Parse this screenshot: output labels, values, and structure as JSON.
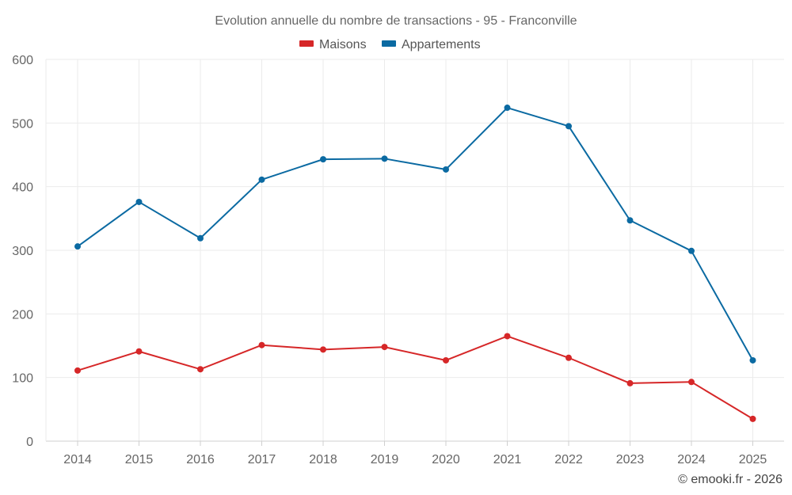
{
  "chart_data": {
    "type": "line",
    "title": "Evolution annuelle du nombre de transactions - 95 - Franconville",
    "categories": [
      "2014",
      "2015",
      "2016",
      "2017",
      "2018",
      "2019",
      "2020",
      "2021",
      "2022",
      "2023",
      "2024",
      "2025"
    ],
    "series": [
      {
        "name": "Maisons",
        "color": "#d62728",
        "values": [
          111,
          141,
          113,
          151,
          144,
          148,
          127,
          165,
          131,
          91,
          93,
          35
        ]
      },
      {
        "name": "Appartements",
        "color": "#0b6aa2",
        "values": [
          306,
          376,
          319,
          411,
          443,
          444,
          427,
          524,
          495,
          347,
          299,
          127
        ]
      }
    ],
    "ylim": [
      0,
      600
    ],
    "yticks": [
      0,
      100,
      200,
      300,
      400,
      500,
      600
    ],
    "xlabel": "",
    "ylabel": "",
    "grid": true,
    "legend": "top-center"
  },
  "credit": "© emooki.fr - 2026"
}
